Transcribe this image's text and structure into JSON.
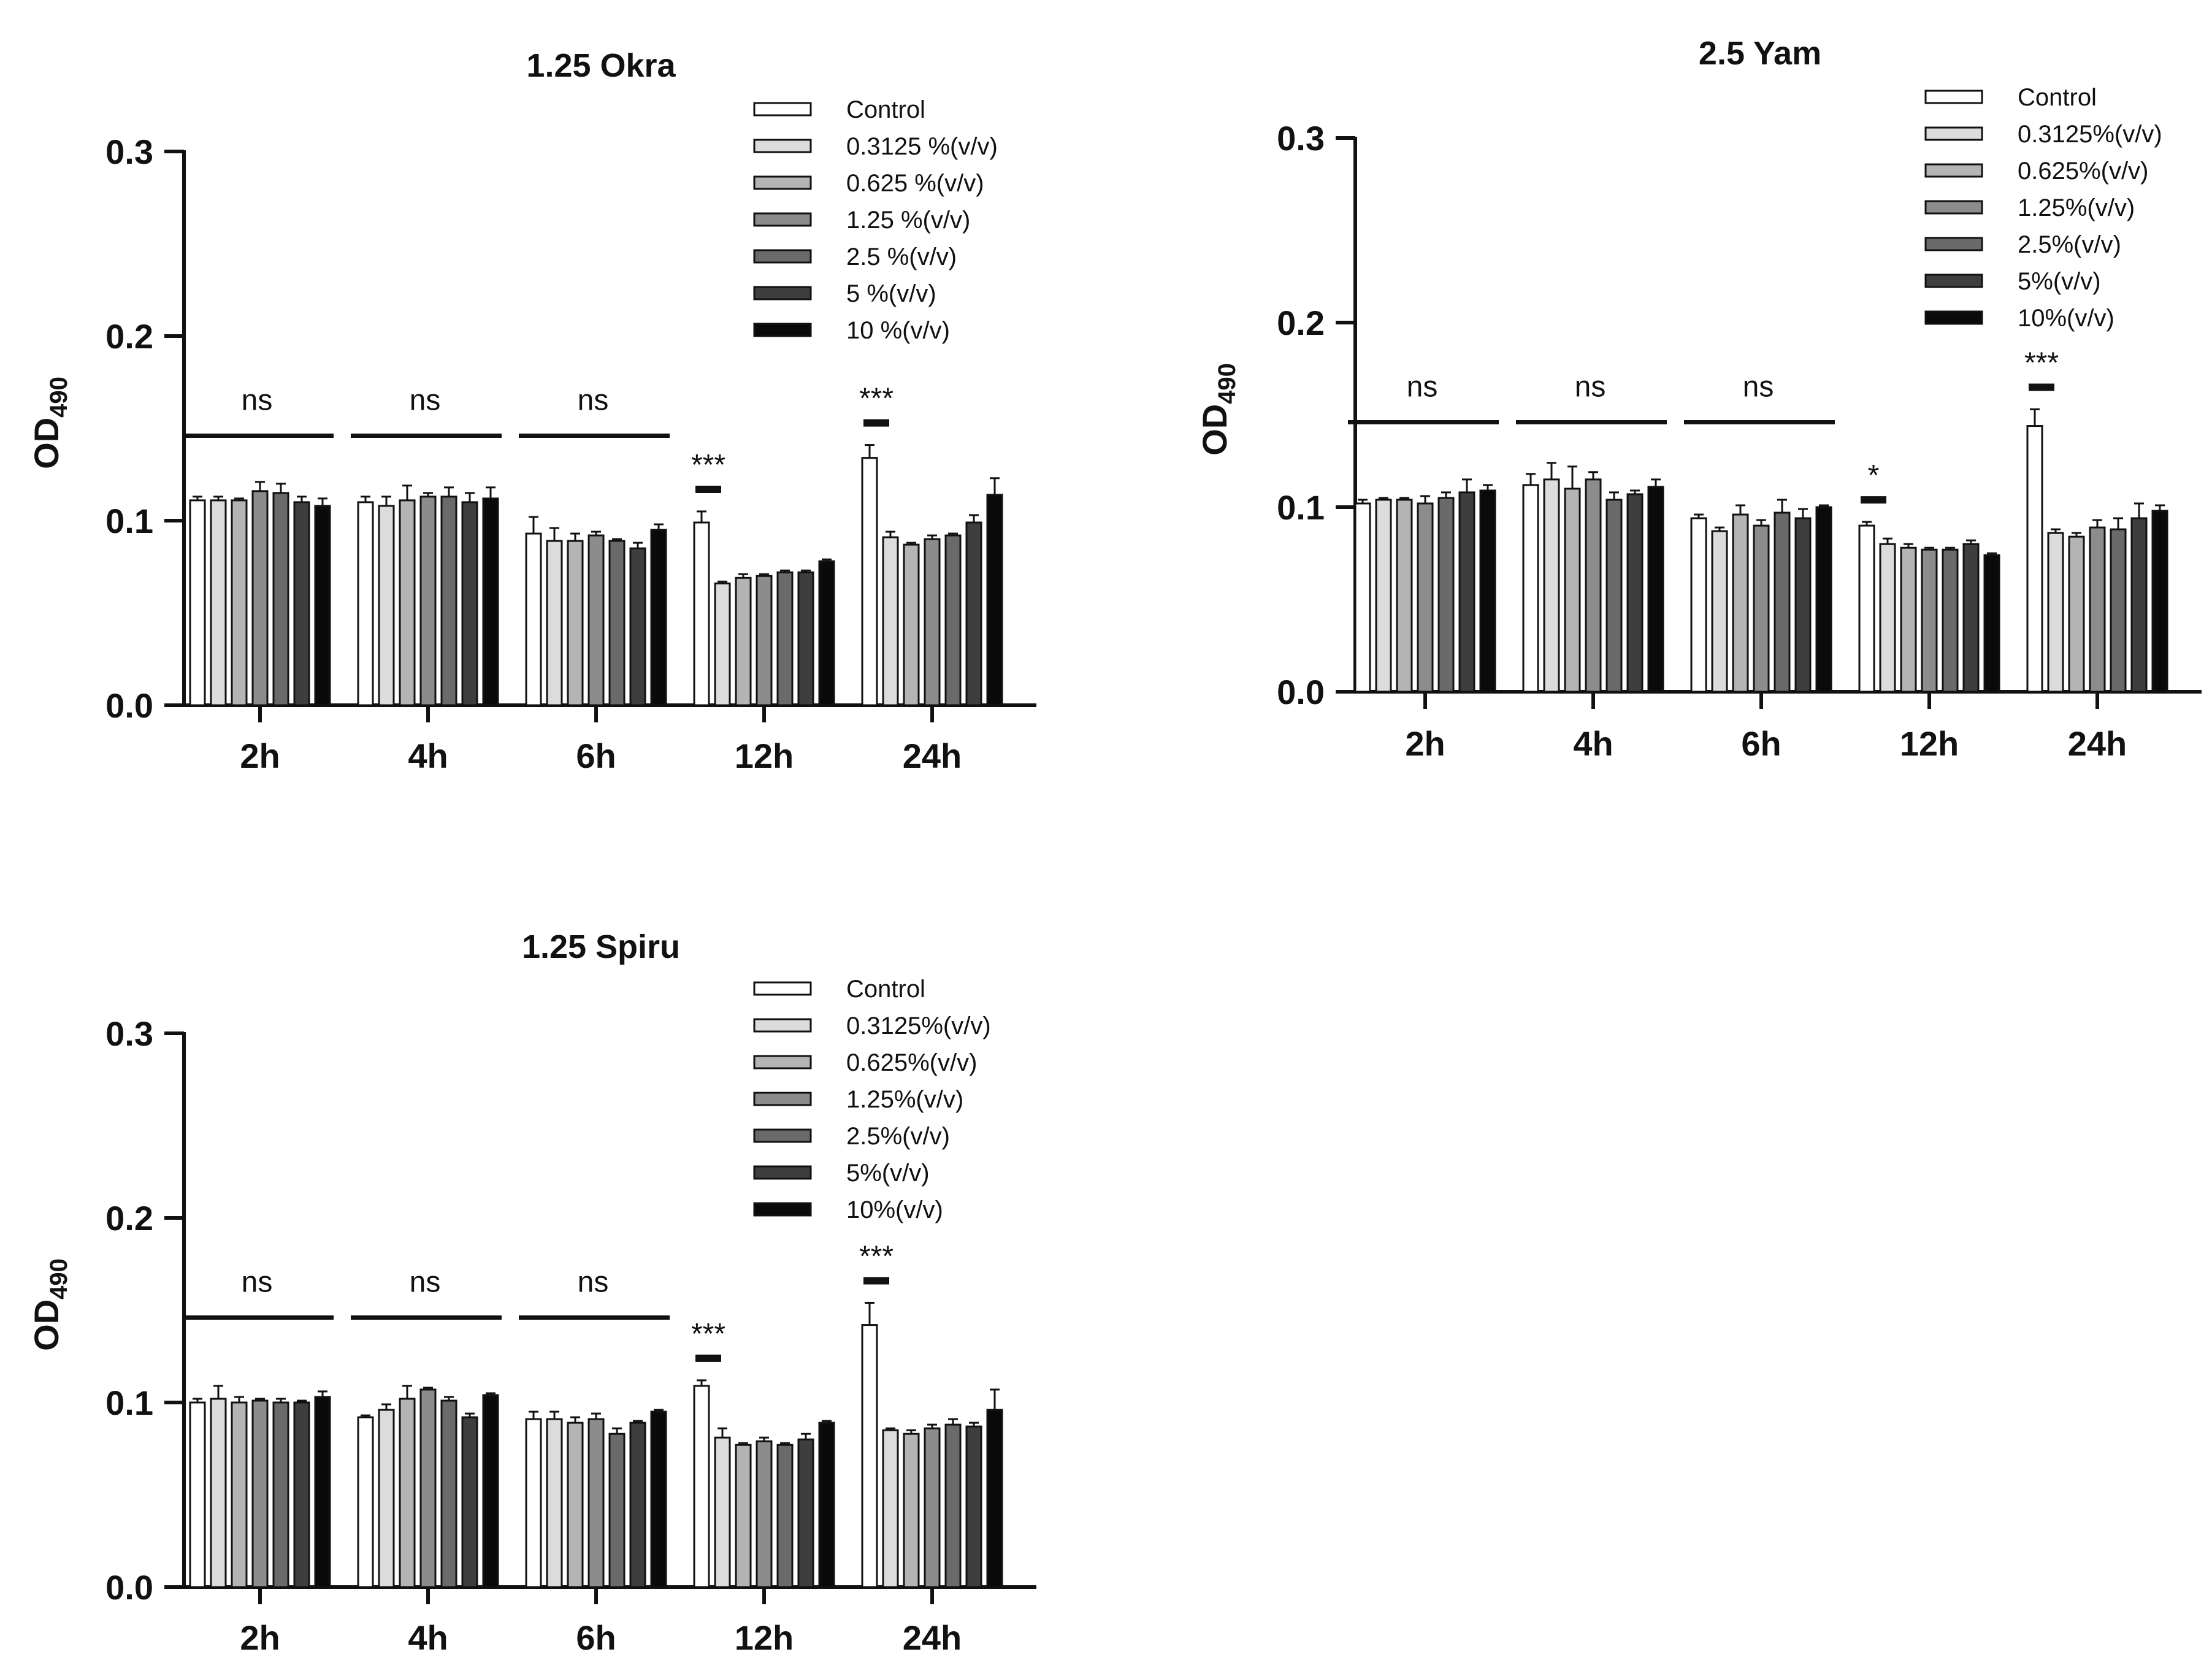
{
  "chart_data": [
    {
      "type": "bar",
      "title": "1.25 Okra",
      "xlabel": "",
      "ylabel_main": "OD",
      "ylabel_sub": "490",
      "ylim": [
        0,
        0.3
      ],
      "yticks": [
        "0.0",
        "0.1",
        "0.2",
        "0.3"
      ],
      "categories": [
        "2h",
        "4h",
        "6h",
        "12h",
        "24h"
      ],
      "series": [
        {
          "name": "Control",
          "values": [
            0.111,
            0.11,
            0.093,
            0.099,
            0.134
          ],
          "errors": [
            0.002,
            0.003,
            0.009,
            0.006,
            0.007
          ]
        },
        {
          "name": "0.3125 %(v/v)",
          "values": [
            0.111,
            0.108,
            0.089,
            0.066,
            0.091
          ],
          "errors": [
            0.002,
            0.005,
            0.007,
            0.001,
            0.003
          ]
        },
        {
          "name": "0.625 %(v/v)",
          "values": [
            0.111,
            0.111,
            0.089,
            0.069,
            0.087
          ],
          "errors": [
            0.001,
            0.008,
            0.004,
            0.002,
            0.001
          ]
        },
        {
          "name": "1.25 %(v/v)",
          "values": [
            0.116,
            0.113,
            0.092,
            0.07,
            0.09
          ],
          "errors": [
            0.005,
            0.002,
            0.002,
            0.001,
            0.002
          ]
        },
        {
          "name": "2.5 %(v/v)",
          "values": [
            0.115,
            0.113,
            0.089,
            0.072,
            0.092
          ],
          "errors": [
            0.005,
            0.005,
            0.001,
            0.001,
            0.001
          ]
        },
        {
          "name": "5 %(v/v)",
          "values": [
            0.11,
            0.11,
            0.085,
            0.072,
            0.099
          ],
          "errors": [
            0.003,
            0.005,
            0.003,
            0.001,
            0.004
          ]
        },
        {
          "name": "10 %(v/v)",
          "values": [
            0.108,
            0.112,
            0.095,
            0.078,
            0.114
          ],
          "errors": [
            0.004,
            0.006,
            0.003,
            0.001,
            0.009
          ]
        }
      ],
      "significance": [
        {
          "group": "2h",
          "label": "ns"
        },
        {
          "group": "4h",
          "label": "ns"
        },
        {
          "group": "6h",
          "label": "ns"
        },
        {
          "group": "12h",
          "label": "***"
        },
        {
          "group": "24h",
          "label": "***"
        }
      ]
    },
    {
      "type": "bar",
      "title": "2.5 Yam",
      "xlabel": "",
      "ylabel_main": "OD",
      "ylabel_sub": "490",
      "ylim": [
        0,
        0.3
      ],
      "yticks": [
        "0.0",
        "0.1",
        "0.2",
        "0.3"
      ],
      "categories": [
        "2h",
        "4h",
        "6h",
        "12h",
        "24h"
      ],
      "series": [
        {
          "name": "Control",
          "values": [
            0.102,
            0.112,
            0.094,
            0.09,
            0.144
          ],
          "errors": [
            0.002,
            0.006,
            0.002,
            0.002,
            0.009
          ]
        },
        {
          "name": "0.3125%(v/v)",
          "values": [
            0.104,
            0.115,
            0.087,
            0.08,
            0.086
          ],
          "errors": [
            0.001,
            0.009,
            0.002,
            0.003,
            0.002
          ]
        },
        {
          "name": "0.625%(v/v)",
          "values": [
            0.104,
            0.11,
            0.096,
            0.078,
            0.084
          ],
          "errors": [
            0.001,
            0.012,
            0.005,
            0.002,
            0.002
          ]
        },
        {
          "name": "1.25%(v/v)",
          "values": [
            0.102,
            0.115,
            0.09,
            0.077,
            0.089
          ],
          "errors": [
            0.004,
            0.004,
            0.003,
            0.001,
            0.004
          ]
        },
        {
          "name": "2.5%(v/v)",
          "values": [
            0.105,
            0.104,
            0.097,
            0.077,
            0.088
          ],
          "errors": [
            0.003,
            0.004,
            0.007,
            0.001,
            0.006
          ]
        },
        {
          "name": "5%(v/v)",
          "values": [
            0.108,
            0.107,
            0.094,
            0.08,
            0.094
          ],
          "errors": [
            0.007,
            0.002,
            0.005,
            0.002,
            0.008
          ]
        },
        {
          "name": "10%(v/v)",
          "values": [
            0.109,
            0.111,
            0.1,
            0.074,
            0.098
          ],
          "errors": [
            0.003,
            0.004,
            0.001,
            0.001,
            0.003
          ]
        }
      ],
      "significance": [
        {
          "group": "2h",
          "label": "ns"
        },
        {
          "group": "4h",
          "label": "ns"
        },
        {
          "group": "6h",
          "label": "ns"
        },
        {
          "group": "12h",
          "label": "*"
        },
        {
          "group": "24h",
          "label": "***"
        }
      ]
    },
    {
      "type": "bar",
      "title": "1.25 Spiru",
      "xlabel": "",
      "ylabel_main": "OD",
      "ylabel_sub": "490",
      "ylim": [
        0,
        0.3
      ],
      "yticks": [
        "0.0",
        "0.1",
        "0.2",
        "0.3"
      ],
      "categories": [
        "2h",
        "4h",
        "6h",
        "12h",
        "24h"
      ],
      "series": [
        {
          "name": "Control",
          "values": [
            0.1,
            0.092,
            0.091,
            0.109,
            0.142
          ],
          "errors": [
            0.002,
            0.001,
            0.004,
            0.003,
            0.012
          ]
        },
        {
          "name": "0.3125%(v/v)",
          "values": [
            0.102,
            0.096,
            0.091,
            0.081,
            0.085
          ],
          "errors": [
            0.007,
            0.003,
            0.004,
            0.005,
            0.001
          ]
        },
        {
          "name": "0.625%(v/v)",
          "values": [
            0.1,
            0.102,
            0.089,
            0.077,
            0.083
          ],
          "errors": [
            0.003,
            0.007,
            0.003,
            0.001,
            0.002
          ]
        },
        {
          "name": "1.25%(v/v)",
          "values": [
            0.101,
            0.107,
            0.091,
            0.079,
            0.086
          ],
          "errors": [
            0.001,
            0.001,
            0.003,
            0.002,
            0.002
          ]
        },
        {
          "name": "2.5%(v/v)",
          "values": [
            0.1,
            0.101,
            0.083,
            0.077,
            0.088
          ],
          "errors": [
            0.002,
            0.002,
            0.003,
            0.001,
            0.003
          ]
        },
        {
          "name": "5%(v/v)",
          "values": [
            0.1,
            0.092,
            0.089,
            0.08,
            0.087
          ],
          "errors": [
            0.001,
            0.002,
            0.001,
            0.003,
            0.002
          ]
        },
        {
          "name": "10%(v/v)",
          "values": [
            0.103,
            0.104,
            0.095,
            0.089,
            0.096
          ],
          "errors": [
            0.003,
            0.001,
            0.001,
            0.001,
            0.011
          ]
        }
      ],
      "significance": [
        {
          "group": "2h",
          "label": "ns"
        },
        {
          "group": "4h",
          "label": "ns"
        },
        {
          "group": "6h",
          "label": "ns"
        },
        {
          "group": "12h",
          "label": "***"
        },
        {
          "group": "24h",
          "label": "***"
        }
      ]
    }
  ],
  "colors": {
    "series_fills": [
      "#ffffff",
      "#dcdcdc",
      "#b4b4b4",
      "#8c8c8c",
      "#6a6a6a",
      "#3e3e3e",
      "#0a0a0a"
    ],
    "axis": "#111111"
  }
}
